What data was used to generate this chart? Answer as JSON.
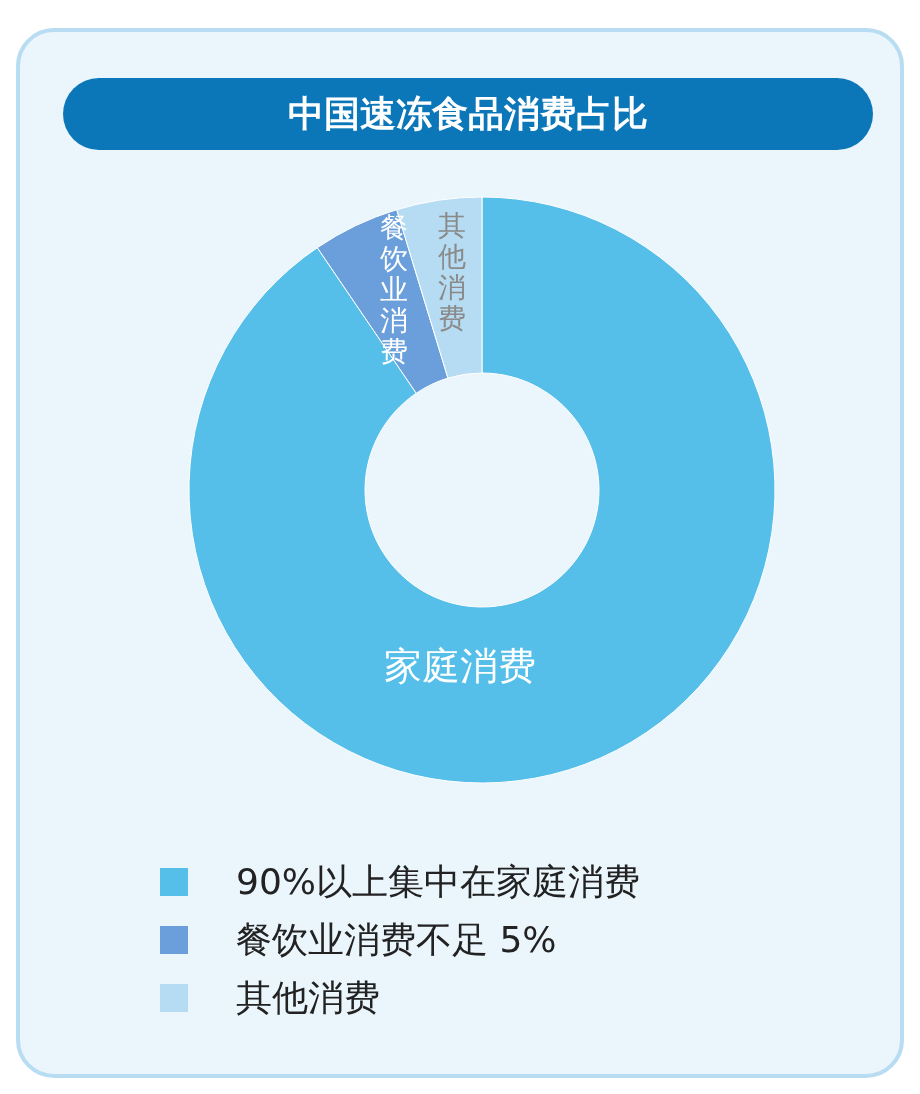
{
  "chart_data": {
    "type": "donut",
    "title": "中国速冻食品消费占比",
    "categories": [
      "90%以上集中在家庭消费",
      "餐饮业消费不足 5%",
      "其他消费"
    ],
    "values": [
      90.5,
      4.8,
      4.7
    ],
    "colors": [
      "#55bfea",
      "#6a9fdb",
      "#b5dcf2"
    ],
    "annotations": [
      "家庭消费",
      "餐饮业消费",
      "其他消费"
    ],
    "legend": "bottom"
  }
}
